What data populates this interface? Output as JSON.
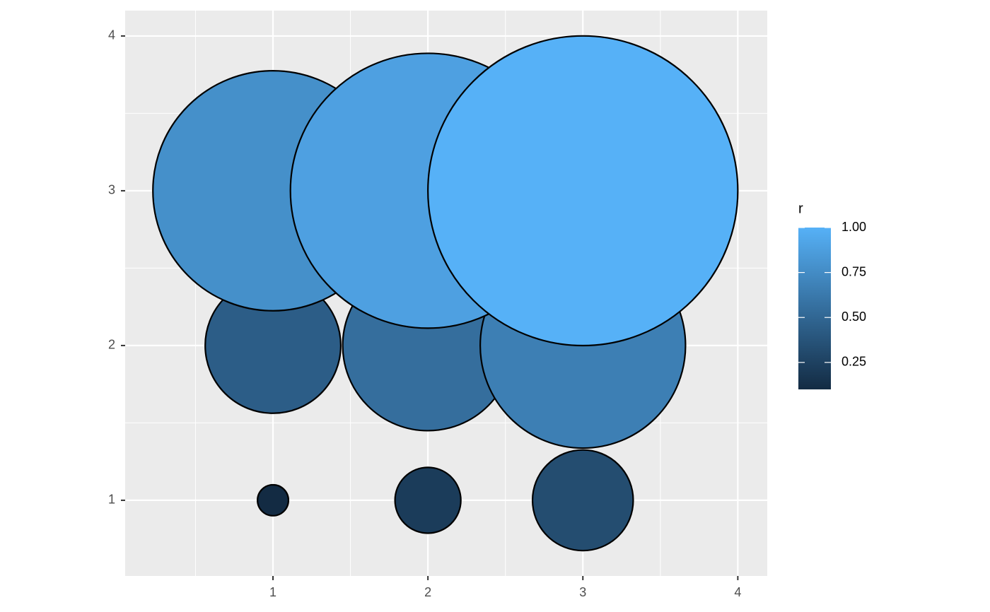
{
  "chart_data": {
    "type": "bubble",
    "x": [
      1,
      2,
      3,
      1,
      2,
      3,
      1,
      2,
      3
    ],
    "y": [
      1,
      1,
      1,
      2,
      2,
      2,
      3,
      3,
      3
    ],
    "r": [
      0.1,
      0.2125,
      0.325,
      0.4375,
      0.55,
      0.6625,
      0.775,
      0.8875,
      1.0
    ],
    "xlim": [
      0.046,
      4.19
    ],
    "ylim": [
      0.511,
      4.164
    ],
    "xticks": [
      1,
      2,
      3,
      4
    ],
    "yticks": [
      1,
      2,
      3,
      4
    ],
    "grid": true,
    "color_low": "#132B43",
    "color_high": "#56B1F7",
    "legend": {
      "title": "r",
      "position": "right",
      "ticks": [
        {
          "value": 0.25,
          "label": "0.25"
        },
        {
          "value": 0.5,
          "label": "0.50"
        },
        {
          "value": 0.75,
          "label": "0.75"
        },
        {
          "value": 1.0,
          "label": "1.00"
        }
      ]
    }
  }
}
